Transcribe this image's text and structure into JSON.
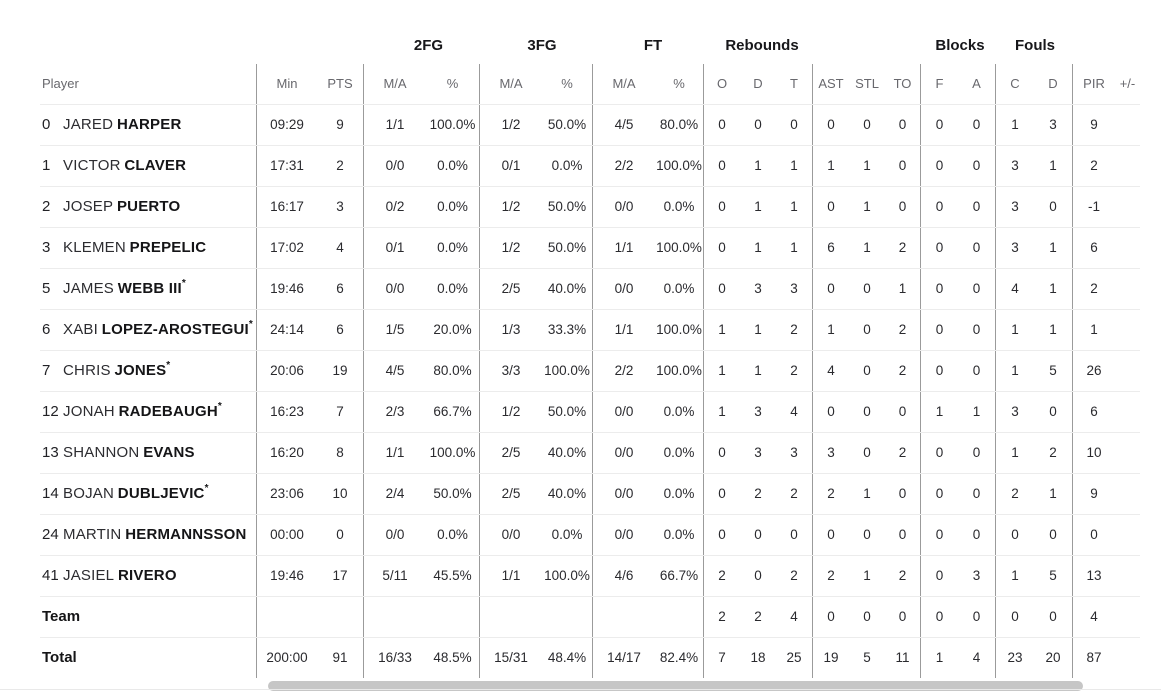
{
  "table": {
    "group_headers": {
      "fg2": "2FG",
      "fg3": "3FG",
      "ft": "FT",
      "rebounds": "Rebounds",
      "blocks": "Blocks",
      "fouls": "Fouls"
    },
    "columns": {
      "player": "Player",
      "min": "Min",
      "pts": "PTS",
      "ma": "M/A",
      "pct": "%",
      "o": "O",
      "d": "D",
      "t": "T",
      "ast": "AST",
      "stl": "STL",
      "to": "TO",
      "f": "F",
      "a": "A",
      "c": "C",
      "d2": "D",
      "pir": "PIR",
      "plus_minus": "+/-"
    },
    "rows": [
      {
        "num": "0",
        "first": "JARED",
        "last": "HARPER",
        "star": "",
        "min": "09:29",
        "pts": "9",
        "fg2_ma": "1/1",
        "fg2_pct": "100.0%",
        "fg3_ma": "1/2",
        "fg3_pct": "50.0%",
        "ft_ma": "4/5",
        "ft_pct": "80.0%",
        "reb_o": "0",
        "reb_d": "0",
        "reb_t": "0",
        "ast": "0",
        "stl": "0",
        "to": "0",
        "blk_f": "0",
        "blk_a": "0",
        "foul_c": "1",
        "foul_d": "3",
        "pir": "9",
        "plus_minus": ""
      },
      {
        "num": "1",
        "first": "VICTOR",
        "last": "CLAVER",
        "star": "",
        "min": "17:31",
        "pts": "2",
        "fg2_ma": "0/0",
        "fg2_pct": "0.0%",
        "fg3_ma": "0/1",
        "fg3_pct": "0.0%",
        "ft_ma": "2/2",
        "ft_pct": "100.0%",
        "reb_o": "0",
        "reb_d": "1",
        "reb_t": "1",
        "ast": "1",
        "stl": "1",
        "to": "0",
        "blk_f": "0",
        "blk_a": "0",
        "foul_c": "3",
        "foul_d": "1",
        "pir": "2",
        "plus_minus": ""
      },
      {
        "num": "2",
        "first": "JOSEP",
        "last": "PUERTO",
        "star": "",
        "min": "16:17",
        "pts": "3",
        "fg2_ma": "0/2",
        "fg2_pct": "0.0%",
        "fg3_ma": "1/2",
        "fg3_pct": "50.0%",
        "ft_ma": "0/0",
        "ft_pct": "0.0%",
        "reb_o": "0",
        "reb_d": "1",
        "reb_t": "1",
        "ast": "0",
        "stl": "1",
        "to": "0",
        "blk_f": "0",
        "blk_a": "0",
        "foul_c": "3",
        "foul_d": "0",
        "pir": "-1",
        "plus_minus": ""
      },
      {
        "num": "3",
        "first": "KLEMEN",
        "last": "PREPELIC",
        "star": "",
        "min": "17:02",
        "pts": "4",
        "fg2_ma": "0/1",
        "fg2_pct": "0.0%",
        "fg3_ma": "1/2",
        "fg3_pct": "50.0%",
        "ft_ma": "1/1",
        "ft_pct": "100.0%",
        "reb_o": "0",
        "reb_d": "1",
        "reb_t": "1",
        "ast": "6",
        "stl": "1",
        "to": "2",
        "blk_f": "0",
        "blk_a": "0",
        "foul_c": "3",
        "foul_d": "1",
        "pir": "6",
        "plus_minus": ""
      },
      {
        "num": "5",
        "first": "JAMES",
        "last": "WEBB III",
        "star": "*",
        "min": "19:46",
        "pts": "6",
        "fg2_ma": "0/0",
        "fg2_pct": "0.0%",
        "fg3_ma": "2/5",
        "fg3_pct": "40.0%",
        "ft_ma": "0/0",
        "ft_pct": "0.0%",
        "reb_o": "0",
        "reb_d": "3",
        "reb_t": "3",
        "ast": "0",
        "stl": "0",
        "to": "1",
        "blk_f": "0",
        "blk_a": "0",
        "foul_c": "4",
        "foul_d": "1",
        "pir": "2",
        "plus_minus": ""
      },
      {
        "num": "6",
        "first": "XABI",
        "last": "LOPEZ-AROSTEGUI",
        "star": "*",
        "min": "24:14",
        "pts": "6",
        "fg2_ma": "1/5",
        "fg2_pct": "20.0%",
        "fg3_ma": "1/3",
        "fg3_pct": "33.3%",
        "ft_ma": "1/1",
        "ft_pct": "100.0%",
        "reb_o": "1",
        "reb_d": "1",
        "reb_t": "2",
        "ast": "1",
        "stl": "0",
        "to": "2",
        "blk_f": "0",
        "blk_a": "0",
        "foul_c": "1",
        "foul_d": "1",
        "pir": "1",
        "plus_minus": ""
      },
      {
        "num": "7",
        "first": "CHRIS",
        "last": "JONES",
        "star": "*",
        "min": "20:06",
        "pts": "19",
        "fg2_ma": "4/5",
        "fg2_pct": "80.0%",
        "fg3_ma": "3/3",
        "fg3_pct": "100.0%",
        "ft_ma": "2/2",
        "ft_pct": "100.0%",
        "reb_o": "1",
        "reb_d": "1",
        "reb_t": "2",
        "ast": "4",
        "stl": "0",
        "to": "2",
        "blk_f": "0",
        "blk_a": "0",
        "foul_c": "1",
        "foul_d": "5",
        "pir": "26",
        "plus_minus": ""
      },
      {
        "num": "12",
        "first": "JONAH",
        "last": "RADEBAUGH",
        "star": "*",
        "min": "16:23",
        "pts": "7",
        "fg2_ma": "2/3",
        "fg2_pct": "66.7%",
        "fg3_ma": "1/2",
        "fg3_pct": "50.0%",
        "ft_ma": "0/0",
        "ft_pct": "0.0%",
        "reb_o": "1",
        "reb_d": "3",
        "reb_t": "4",
        "ast": "0",
        "stl": "0",
        "to": "0",
        "blk_f": "1",
        "blk_a": "1",
        "foul_c": "3",
        "foul_d": "0",
        "pir": "6",
        "plus_minus": ""
      },
      {
        "num": "13",
        "first": "SHANNON",
        "last": "EVANS",
        "star": "",
        "min": "16:20",
        "pts": "8",
        "fg2_ma": "1/1",
        "fg2_pct": "100.0%",
        "fg3_ma": "2/5",
        "fg3_pct": "40.0%",
        "ft_ma": "0/0",
        "ft_pct": "0.0%",
        "reb_o": "0",
        "reb_d": "3",
        "reb_t": "3",
        "ast": "3",
        "stl": "0",
        "to": "2",
        "blk_f": "0",
        "blk_a": "0",
        "foul_c": "1",
        "foul_d": "2",
        "pir": "10",
        "plus_minus": ""
      },
      {
        "num": "14",
        "first": "BOJAN",
        "last": "DUBLJEVIC",
        "star": "*",
        "min": "23:06",
        "pts": "10",
        "fg2_ma": "2/4",
        "fg2_pct": "50.0%",
        "fg3_ma": "2/5",
        "fg3_pct": "40.0%",
        "ft_ma": "0/0",
        "ft_pct": "0.0%",
        "reb_o": "0",
        "reb_d": "2",
        "reb_t": "2",
        "ast": "2",
        "stl": "1",
        "to": "0",
        "blk_f": "0",
        "blk_a": "0",
        "foul_c": "2",
        "foul_d": "1",
        "pir": "9",
        "plus_minus": ""
      },
      {
        "num": "24",
        "first": "MARTIN",
        "last": "HERMANNSSON",
        "star": "",
        "min": "00:00",
        "pts": "0",
        "fg2_ma": "0/0",
        "fg2_pct": "0.0%",
        "fg3_ma": "0/0",
        "fg3_pct": "0.0%",
        "ft_ma": "0/0",
        "ft_pct": "0.0%",
        "reb_o": "0",
        "reb_d": "0",
        "reb_t": "0",
        "ast": "0",
        "stl": "0",
        "to": "0",
        "blk_f": "0",
        "blk_a": "0",
        "foul_c": "0",
        "foul_d": "0",
        "pir": "0",
        "plus_minus": ""
      },
      {
        "num": "41",
        "first": "JASIEL",
        "last": "RIVERO",
        "star": "",
        "min": "19:46",
        "pts": "17",
        "fg2_ma": "5/11",
        "fg2_pct": "45.5%",
        "fg3_ma": "1/1",
        "fg3_pct": "100.0%",
        "ft_ma": "4/6",
        "ft_pct": "66.7%",
        "reb_o": "2",
        "reb_d": "0",
        "reb_t": "2",
        "ast": "2",
        "stl": "1",
        "to": "2",
        "blk_f": "0",
        "blk_a": "3",
        "foul_c": "1",
        "foul_d": "5",
        "pir": "13",
        "plus_minus": ""
      },
      {
        "label": "Team",
        "min": "",
        "pts": "",
        "fg2_ma": "",
        "fg2_pct": "",
        "fg3_ma": "",
        "fg3_pct": "",
        "ft_ma": "",
        "ft_pct": "",
        "reb_o": "2",
        "reb_d": "2",
        "reb_t": "4",
        "ast": "0",
        "stl": "0",
        "to": "0",
        "blk_f": "0",
        "blk_a": "0",
        "foul_c": "0",
        "foul_d": "0",
        "pir": "4",
        "plus_minus": ""
      },
      {
        "label": "Total",
        "min": "200:00",
        "pts": "91",
        "fg2_ma": "16/33",
        "fg2_pct": "48.5%",
        "fg3_ma": "15/31",
        "fg3_pct": "48.4%",
        "ft_ma": "14/17",
        "ft_pct": "82.4%",
        "reb_o": "7",
        "reb_d": "18",
        "reb_t": "25",
        "ast": "19",
        "stl": "5",
        "to": "11",
        "blk_f": "1",
        "blk_a": "4",
        "foul_c": "23",
        "foul_d": "20",
        "pir": "87",
        "plus_minus": ""
      }
    ]
  },
  "scrollbar": {
    "orientation": "horizontal"
  },
  "colors": {
    "divider_vertical": "#9b9b9b",
    "row_separator": "#ececec",
    "header_text": "#68686d",
    "body_text": "#2a2a2e",
    "scrollbar_thumb": "#c6c6c6"
  }
}
